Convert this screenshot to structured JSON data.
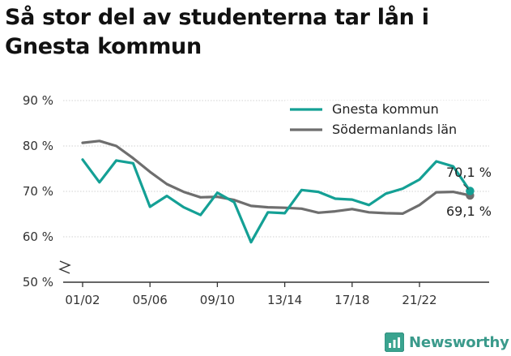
{
  "title": "Så stor del av studenterna tar lån i Gnesta kommun",
  "logo": {
    "text": "Newsworthy",
    "icon": "newsworthy-chart-icon",
    "color": "#3aa38f"
  },
  "chart_data": {
    "type": "line",
    "title": "Så stor del av studenterna tar lån i Gnesta kommun",
    "xlabel": "",
    "ylabel": "",
    "ylim": [
      50,
      90
    ],
    "y_ticks": [
      "50 %",
      "60 %",
      "70 %",
      "80 %",
      "90 %"
    ],
    "y_tick_values": [
      50,
      60,
      70,
      80,
      90
    ],
    "x_ticks": [
      "01/02",
      "05/06",
      "09/10",
      "13/14",
      "17/18",
      "21/22"
    ],
    "x_tick_indices": [
      0,
      4,
      8,
      12,
      16,
      20
    ],
    "grid": true,
    "legend_position": "top-right",
    "axis_break": true,
    "series": [
      {
        "name": "Gnesta kommun",
        "color": "#14a095",
        "values": [
          77.0,
          72.0,
          76.8,
          76.2,
          66.6,
          69.0,
          66.5,
          64.8,
          69.7,
          67.6,
          58.8,
          65.4,
          65.2,
          70.3,
          69.9,
          68.4,
          68.2,
          67.0,
          69.5,
          70.6,
          72.6,
          76.6,
          75.5,
          70.1
        ],
        "end_label": "70,1 %"
      },
      {
        "name": "Södermanlands län",
        "color": "#6e6e6e",
        "values": [
          80.7,
          81.1,
          80.0,
          77.3,
          74.3,
          71.6,
          69.9,
          68.7,
          68.8,
          68.1,
          66.8,
          66.5,
          66.4,
          66.2,
          65.3,
          65.6,
          66.1,
          65.4,
          65.2,
          65.1,
          67.0,
          69.8,
          69.9,
          69.1
        ],
        "end_label": "69,1 %"
      }
    ]
  }
}
